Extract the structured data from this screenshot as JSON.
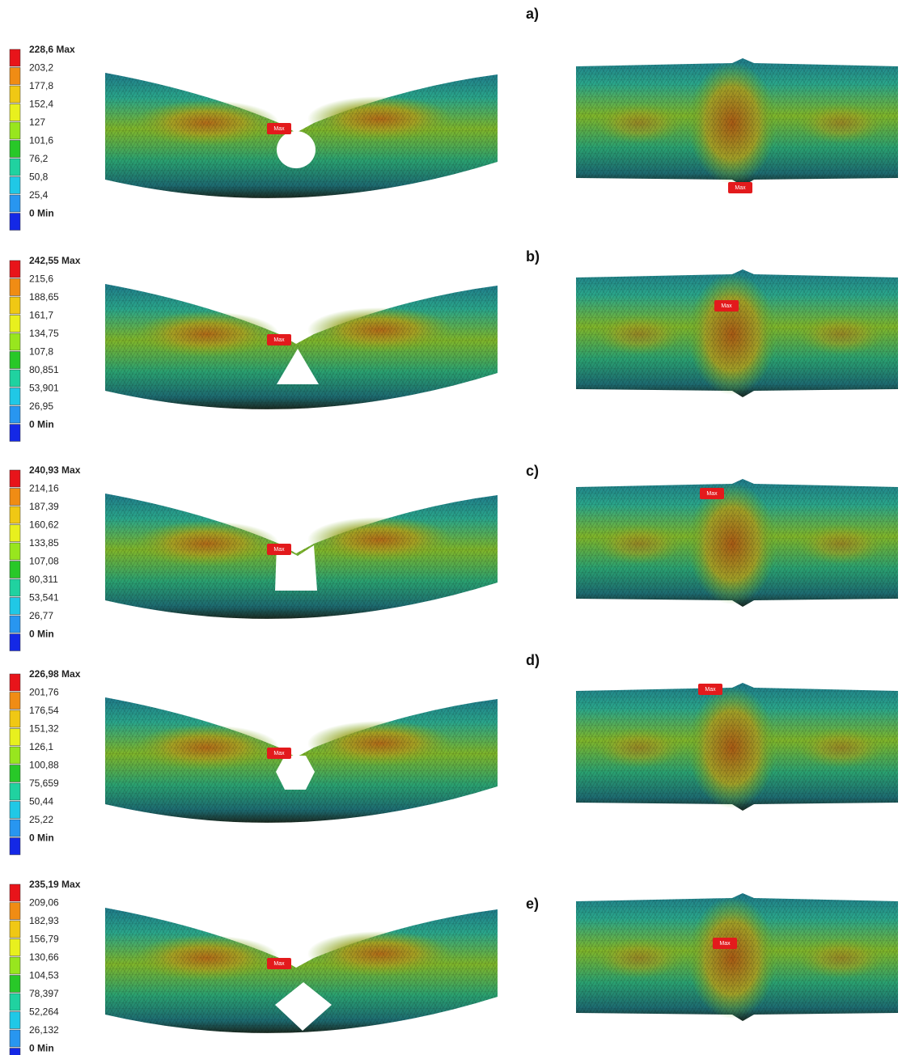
{
  "panels": [
    {
      "label": "a)",
      "legend": [
        "228,6 Max",
        "203,2",
        "177,8",
        "152,4",
        "127",
        "101,6",
        "76,2",
        "50,8",
        "25,4",
        "0 Min"
      ],
      "markers": [
        "Max",
        "Max"
      ]
    },
    {
      "label": "b)",
      "legend": [
        "242,55 Max",
        "215,6",
        "188,65",
        "161,7",
        "134,75",
        "107,8",
        "80,851",
        "53,901",
        "26,95",
        "0 Min"
      ],
      "markers": [
        "Max",
        "Max"
      ]
    },
    {
      "label": "c)",
      "legend": [
        "240,93 Max",
        "214,16",
        "187,39",
        "160,62",
        "133,85",
        "107,08",
        "80,311",
        "53,541",
        "26,77",
        "0 Min"
      ],
      "markers": [
        "Max",
        "Max"
      ]
    },
    {
      "label": "d)",
      "legend": [
        "226,98 Max",
        "201,76",
        "176,54",
        "151,32",
        "126,1",
        "100,88",
        "75,659",
        "50,44",
        "25,22",
        "0 Min"
      ],
      "markers": [
        "Max",
        "Max"
      ]
    },
    {
      "label": "e)",
      "legend": [
        "235,19 Max",
        "209,06",
        "182,93",
        "156,79",
        "130,66",
        "104,53",
        "78,397",
        "52,264",
        "26,132",
        "0 Min"
      ],
      "markers": [
        "Max",
        "Max"
      ]
    }
  ]
}
